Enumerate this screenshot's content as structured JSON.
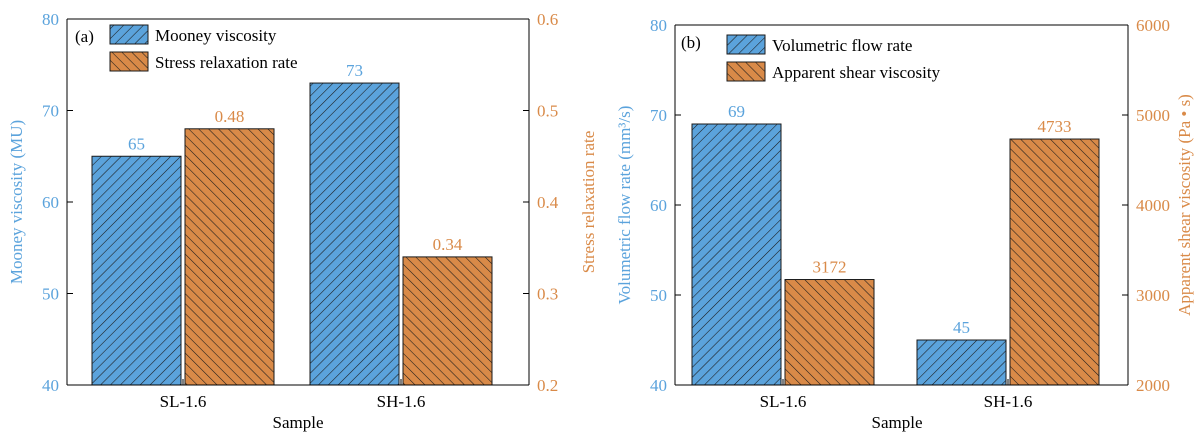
{
  "colors": {
    "blue": "#5ba3dc",
    "orange": "#d98a48",
    "hatch": "#1a1a1a",
    "axis": "#000000",
    "blue_text": "#5ba3dc",
    "orange_text": "#d98a48"
  },
  "chart_data": [
    {
      "type": "bar",
      "panel_label": "(a)",
      "xlabel": "Sample",
      "categories": [
        "SL-1.6",
        "SH-1.6"
      ],
      "ylabel_left": "Mooney viscosity (MU)",
      "ylabel_right": "Stress relaxation rate",
      "ylim_left": [
        40,
        80
      ],
      "ylim_right": [
        0.2,
        0.6
      ],
      "yticks_left": [
        "40",
        "50",
        "60",
        "70",
        "80"
      ],
      "yticks_right": [
        "0.2",
        "0.3",
        "0.4",
        "0.5",
        "0.6"
      ],
      "legend_position": "top-left",
      "grid": false,
      "series": [
        {
          "name": "Mooney viscosity",
          "axis": "left",
          "values": [
            65,
            73
          ],
          "labels": [
            "65",
            "73"
          ],
          "hatch": "forward"
        },
        {
          "name": "Stress relaxation rate",
          "axis": "right",
          "values": [
            0.48,
            0.34
          ],
          "labels": [
            "0.48",
            "0.34"
          ],
          "hatch": "back"
        }
      ]
    },
    {
      "type": "bar",
      "panel_label": "(b)",
      "xlabel": "Sample",
      "categories": [
        "SL-1.6",
        "SH-1.6"
      ],
      "ylabel_left": "Volumetric flow rate (mm³/s)",
      "ylabel_right": "Apparent shear viscosity (Pa • s)",
      "ylim_left": [
        40,
        80
      ],
      "ylim_right": [
        2000,
        6000
      ],
      "yticks_left": [
        "40",
        "50",
        "60",
        "70",
        "80"
      ],
      "yticks_right": [
        "2000",
        "3000",
        "4000",
        "5000",
        "6000"
      ],
      "legend_position": "top-left",
      "grid": false,
      "series": [
        {
          "name": "Volumetric flow rate",
          "axis": "left",
          "values": [
            69,
            45
          ],
          "labels": [
            "69",
            "45"
          ],
          "hatch": "forward"
        },
        {
          "name": "Apparent shear viscosity",
          "axis": "right",
          "values": [
            3172,
            4733
          ],
          "labels": [
            "3172",
            "4733"
          ],
          "hatch": "back"
        }
      ]
    }
  ]
}
